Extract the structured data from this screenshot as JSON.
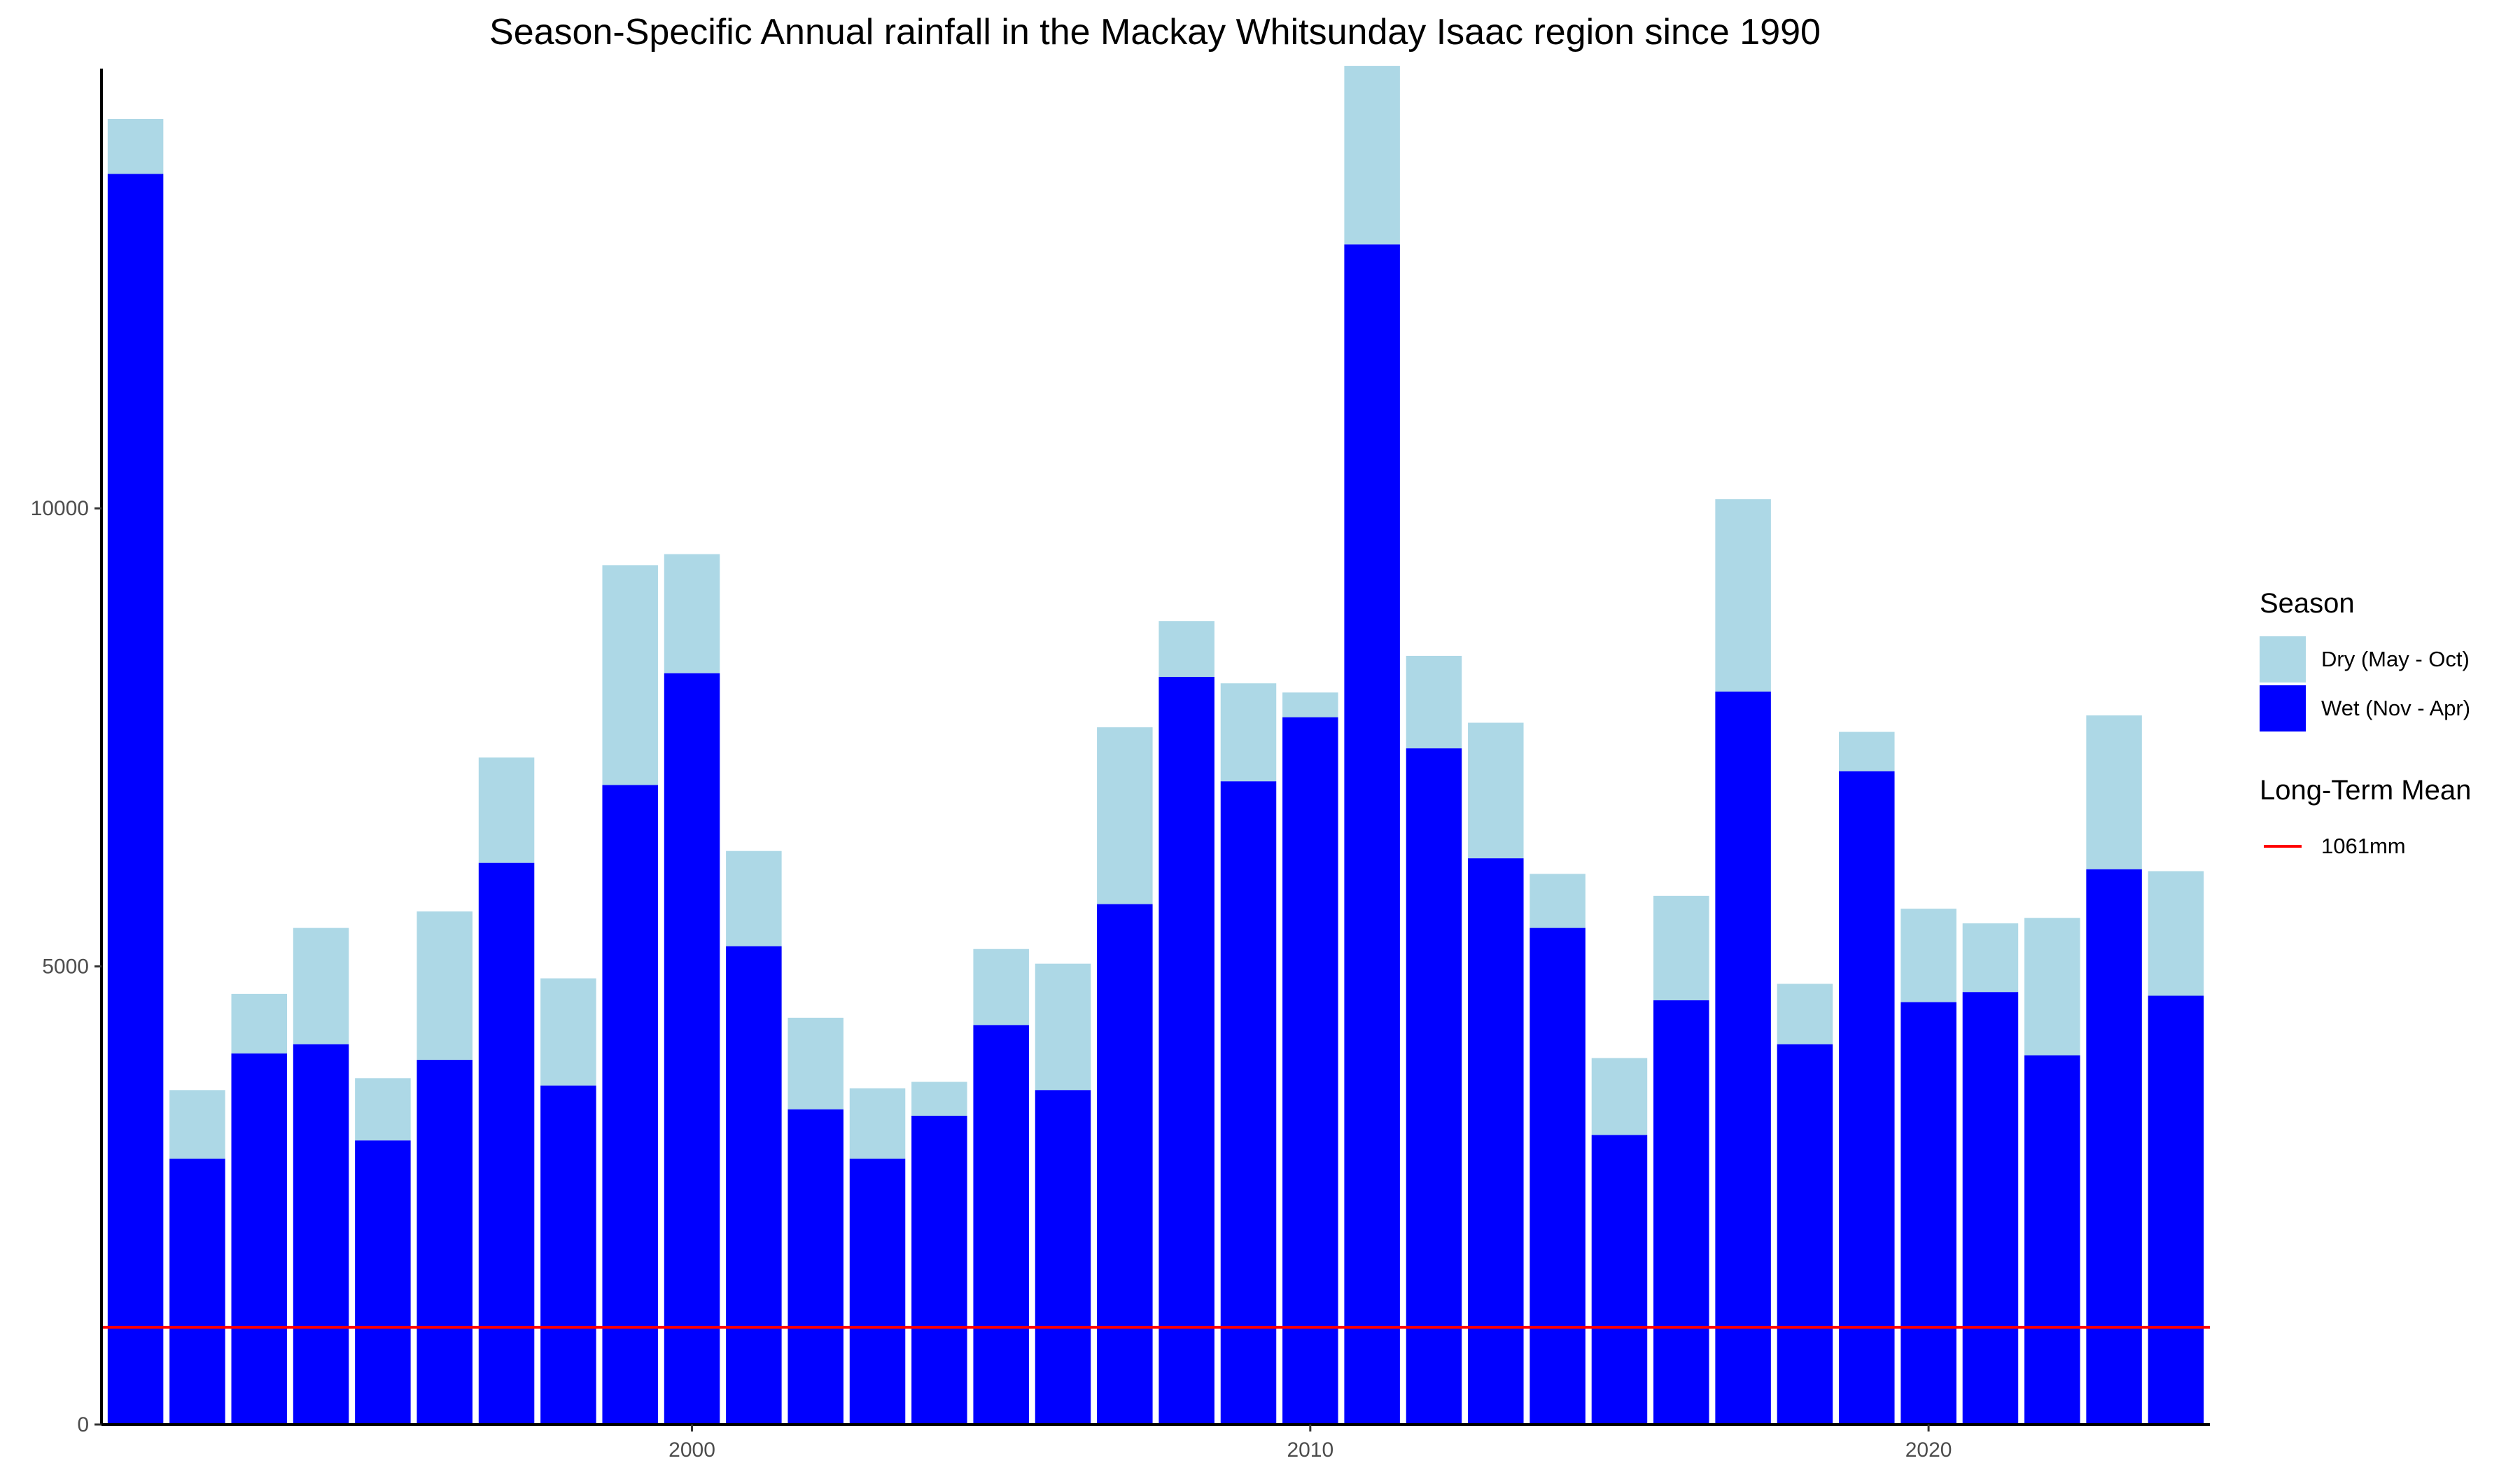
{
  "chart_data": {
    "type": "bar",
    "stacked": true,
    "title": "Season-Specific Annual rainfall in the Mackay Whitsunday Isaac region since 1990",
    "xlabel": "",
    "ylabel": "",
    "xlim": [
      1990.45,
      2024.55
    ],
    "ylim": [
      0,
      14800
    ],
    "x_ticks": [
      2000,
      2010,
      2020
    ],
    "y_ticks": [
      0,
      5000,
      10000
    ],
    "grid": false,
    "legend_position": "right",
    "x": [
      1991,
      1992,
      1993,
      1994,
      1995,
      1996,
      1997,
      1998,
      1999,
      2000,
      2001,
      2002,
      2003,
      2004,
      2005,
      2006,
      2007,
      2008,
      2009,
      2010,
      2011,
      2012,
      2013,
      2014,
      2015,
      2016,
      2017,
      2018,
      2019,
      2020,
      2021,
      2022,
      2023,
      2024
    ],
    "series": [
      {
        "name": "Wet (Nov - Apr)",
        "color": "#0000ff",
        "values": [
          13650,
          2900,
          4050,
          4150,
          3100,
          3980,
          6130,
          3700,
          6980,
          8200,
          5220,
          3440,
          2900,
          3370,
          4360,
          3650,
          5680,
          8160,
          7020,
          7720,
          12880,
          7380,
          6180,
          5420,
          3160,
          4630,
          8000,
          4150,
          7130,
          4610,
          4720,
          4030,
          6060,
          4680
        ]
      },
      {
        "name": "Dry (May - Oct)",
        "color": "#add8e6",
        "values": [
          600,
          750,
          650,
          1270,
          680,
          1620,
          1150,
          1170,
          2400,
          1300,
          1040,
          1000,
          770,
          370,
          830,
          1380,
          1930,
          610,
          1070,
          270,
          1950,
          1010,
          1480,
          590,
          840,
          1140,
          2100,
          660,
          430,
          1020,
          750,
          1500,
          1680,
          1360
        ]
      }
    ],
    "reference_lines": [
      {
        "name": "1061mm",
        "value": 1061,
        "color": "#ff0000"
      }
    ]
  },
  "legend": {
    "season_title": "Season",
    "season_items": [
      {
        "label": "Dry (May - Oct)",
        "color": "#add8e6"
      },
      {
        "label": "Wet (Nov - Apr)",
        "color": "#0000ff"
      }
    ],
    "mean_title": "Long-Term Mean",
    "mean_items": [
      {
        "label": "1061mm",
        "color": "#ff0000"
      }
    ]
  }
}
